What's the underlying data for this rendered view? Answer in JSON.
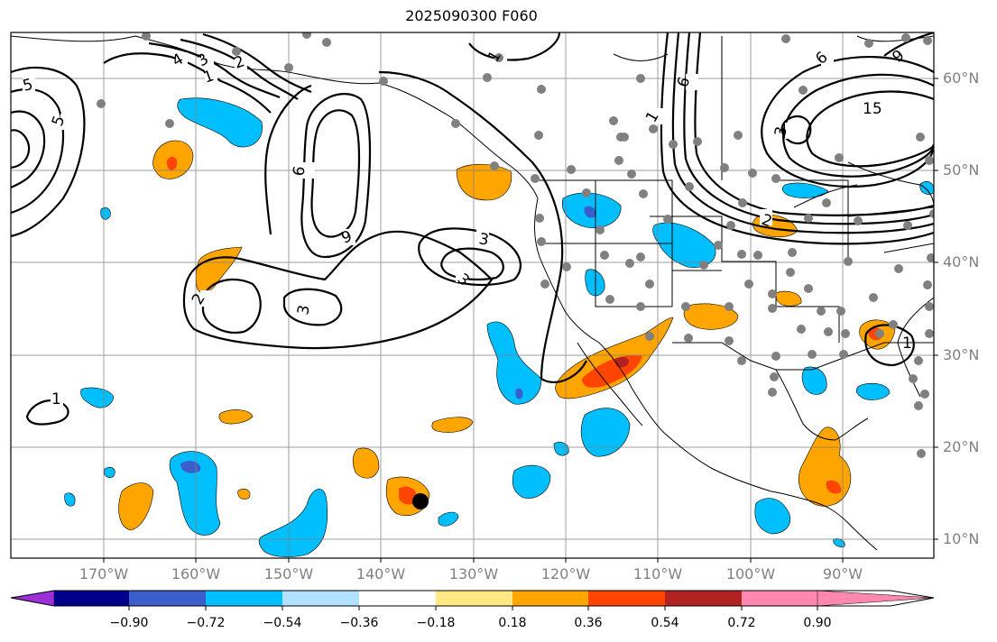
{
  "title": "2025090300 F060",
  "latitude_labels": [
    "60°N",
    "50°N",
    "40°N",
    "30°N",
    "20°N",
    "10°N"
  ],
  "longitude_labels": [
    "170°W",
    "160°W",
    "150°W",
    "140°W",
    "130°W",
    "120°W",
    "110°W",
    "100°W",
    "90°W"
  ],
  "colorbar": {
    "tick_labels": [
      "−0.90",
      "−0.72",
      "−0.54",
      "−0.36",
      "−0.18",
      "0.18",
      "0.36",
      "0.54",
      "0.72",
      "0.90"
    ],
    "colors": [
      "#9b30d8",
      "#00008b",
      "#3a5fcd",
      "#00bfff",
      "#b0e2ff",
      "#ffffff",
      "#ffe985",
      "#ffa500",
      "#ff4500",
      "#b22222",
      "#ff87b0"
    ]
  },
  "contour_labels": [
    "5",
    "5",
    "4",
    "3",
    "2",
    "1",
    "6",
    "9",
    "2",
    "3",
    "3",
    "3",
    "1",
    "1",
    "6",
    "3",
    "2",
    "1",
    "6",
    "15",
    "9",
    "1"
  ]
}
